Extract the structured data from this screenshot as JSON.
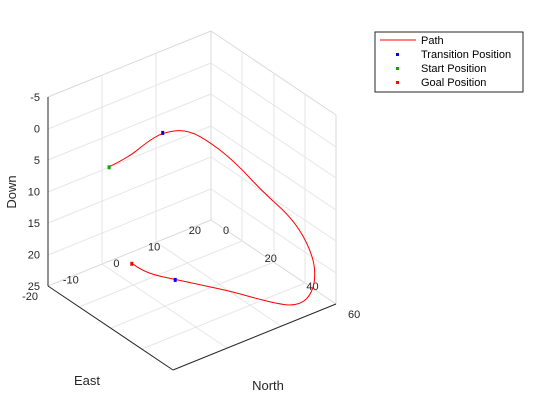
{
  "chart_data": {
    "type": "line",
    "title": "",
    "plot_kind": "3d-line",
    "axes": {
      "x": {
        "label": "North",
        "range": [
          0,
          60
        ],
        "ticks": [
          0,
          20,
          40,
          60
        ]
      },
      "y": {
        "label": "East",
        "range": [
          -20,
          20
        ],
        "ticks": [
          -20,
          -10,
          0,
          10,
          20
        ]
      },
      "z": {
        "label": "Down",
        "range": [
          -5,
          25
        ],
        "ticks": [
          -5,
          0,
          5,
          10,
          15,
          20,
          25
        ],
        "reversed": true
      }
    },
    "grid": true,
    "legend": {
      "placement": "outside-top-right",
      "entries": [
        {
          "name": "Path",
          "marker": "line",
          "color": "#ff0000"
        },
        {
          "name": "Transition Position",
          "marker": "square",
          "color": "#0000ff"
        },
        {
          "name": "Start Position",
          "marker": "square",
          "color": "#00aa00"
        },
        {
          "name": "Goal Position",
          "marker": "square",
          "color": "#ff0000"
        }
      ]
    },
    "series": [
      {
        "name": "Path",
        "color": "#ff0000",
        "points": [
          {
            "north": 0,
            "east": -5,
            "down": 10
          },
          {
            "north": 5,
            "east": -3,
            "down": 8
          },
          {
            "north": 10,
            "east": -1,
            "down": 5
          },
          {
            "north": 14,
            "east": 1,
            "down": 3
          },
          {
            "north": 20,
            "east": 4,
            "down": 2
          },
          {
            "north": 28,
            "east": 6,
            "down": 3
          },
          {
            "north": 36,
            "east": 8,
            "down": 5
          },
          {
            "north": 44,
            "east": 10,
            "down": 8
          },
          {
            "north": 52,
            "east": 14,
            "down": 12
          },
          {
            "north": 57,
            "east": 16,
            "down": 17
          },
          {
            "north": 58,
            "east": 16,
            "down": 21
          },
          {
            "north": 56,
            "east": 15,
            "down": 24
          },
          {
            "north": 53,
            "east": 13,
            "down": 25
          },
          {
            "north": 49,
            "east": 11,
            "down": 25
          },
          {
            "north": 43,
            "east": 9,
            "down": 25
          },
          {
            "north": 36,
            "east": 7,
            "down": 25
          },
          {
            "north": 28,
            "east": 4,
            "down": 25
          },
          {
            "north": 20,
            "east": 1,
            "down": 25
          },
          {
            "north": 15,
            "east": -1,
            "down": 25
          },
          {
            "north": 10,
            "east": -2,
            "down": 25
          },
          {
            "north": 5,
            "east": -2,
            "down": 25
          }
        ]
      }
    ],
    "markers": [
      {
        "name": "Start Position",
        "color": "#00aa00",
        "north": 0,
        "east": -5,
        "down": 10
      },
      {
        "name": "Transition Position",
        "color": "#0000ff",
        "north": 14,
        "east": 1,
        "down": 3
      },
      {
        "name": "Transition Position",
        "color": "#0000ff",
        "north": 20,
        "east": 1,
        "down": 25
      },
      {
        "name": "Goal Position",
        "color": "#ff0000",
        "north": 5,
        "east": -2,
        "down": 25
      }
    ]
  }
}
